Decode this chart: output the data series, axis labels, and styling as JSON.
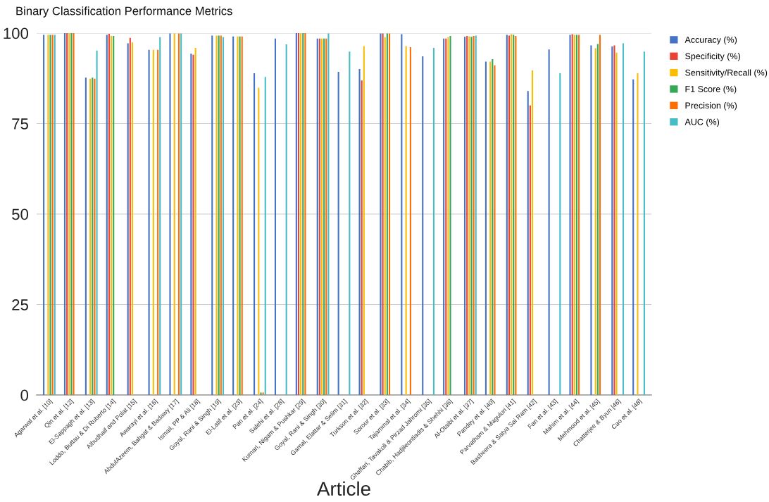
{
  "chart_data": {
    "type": "bar",
    "title": "Binary Classification Performance Metrics",
    "xlabel": "Article",
    "categories": [
      "Agarwal et al. [10]",
      "Qin et al. [12]",
      "El-Sappagh et al. [13]",
      "Loddo, Buttau & Di Ruberto [14]",
      "Alhudhaif and Polat [15]",
      "Awarayi et al. [16]",
      "AbdulAzeem, Bahgat & Badawy [17]",
      "Ismail, PP & Ali [18]",
      "Goyal, Rani & Singh [19]",
      "El-Latif et al. [23]",
      "Pan et al. [24]",
      "Salehi et al. [28]",
      "Kumari, Nigam & Pushkar [29]",
      "Goyal, Rani & Singh [30]",
      "Gamal, Elattar & Selim [31]",
      "Turkson et al. [32]",
      "Sorour et al. [33]",
      "Tajammal et al. [34]",
      "Ghaffari, Tavakoli & Pirzad Jahromi [35]",
      "Chabib, Hadjileontiadis & Shehhi [36]",
      "Al-Otaibi et al. [37]",
      "Pandey et al. [40]",
      "Parvatham & Maguluri [41]",
      "Basheera & Satya Sai Ram [42]",
      "Fan et al. [43]",
      "Mahim et al. [44]",
      "Mehmood et al. [45]",
      "Chatterjee & Byun [46]",
      "Cao et al. [48]"
    ],
    "series": [
      {
        "name": "Accuracy (%)",
        "color": "#4472c4",
        "values": [
          99.5,
          100,
          87.7,
          99.5,
          97.2,
          95.4,
          99.9,
          94.3,
          99.3,
          99.1,
          88.9,
          98.5,
          100,
          98.5,
          89.3,
          90.1,
          99.9,
          99.7,
          93.6,
          98.5,
          99.0,
          92.1,
          99.5,
          84.0,
          95.5,
          99.5,
          96.6,
          96.3,
          87.2
        ]
      },
      {
        "name": "Specificity (%)",
        "color": "#ea4335",
        "values": [
          null,
          100,
          null,
          99.8,
          98.7,
          null,
          null,
          94.0,
          null,
          null,
          null,
          null,
          100,
          98.5,
          null,
          86.9,
          99.9,
          null,
          null,
          98.5,
          99.2,
          null,
          99.3,
          80.0,
          null,
          99.7,
          null,
          96.6,
          null
        ]
      },
      {
        "name": "Sensitivity/Recall (%)",
        "color": "#fbbc04",
        "values": [
          99.5,
          100,
          87.4,
          99.2,
          97.4,
          95.4,
          99.9,
          95.9,
          99.3,
          99.1,
          84.9,
          null,
          100,
          98.5,
          null,
          96.4,
          98.9,
          96.4,
          null,
          98.9,
          99.1,
          92.1,
          99.7,
          89.7,
          null,
          99.5,
          95.8,
          94.6,
          88.9
        ]
      },
      {
        "name": "F1 Score (%)",
        "color": "#34a853",
        "values": [
          99.5,
          100,
          87.7,
          99.2,
          null,
          null,
          null,
          null,
          99.3,
          99.1,
          0.7,
          null,
          100,
          98.5,
          null,
          null,
          99.9,
          null,
          null,
          99.2,
          99.0,
          92.8,
          99.5,
          null,
          null,
          99.5,
          97.0,
          null,
          null
        ]
      },
      {
        "name": "Precision (%)",
        "color": "#ff6d01",
        "values": [
          99.5,
          100,
          87.4,
          null,
          null,
          95.4,
          99.9,
          null,
          99.3,
          99.1,
          0.7,
          null,
          100,
          98.5,
          null,
          null,
          99.9,
          96.1,
          null,
          null,
          99.2,
          91.1,
          99.2,
          null,
          null,
          99.5,
          99.5,
          null,
          null
        ]
      },
      {
        "name": "AUC (%)",
        "color": "#46bdc6",
        "values": [
          99.5,
          null,
          95.2,
          null,
          null,
          98.9,
          99.9,
          null,
          98.9,
          null,
          87.9,
          96.9,
          null,
          99.9,
          94.9,
          null,
          null,
          null,
          95.9,
          null,
          99.3,
          null,
          null,
          null,
          88.9,
          null,
          null,
          97.2,
          94.9
        ]
      }
    ],
    "ylim": [
      0,
      100
    ],
    "yticks": [
      0,
      25,
      50,
      75,
      100
    ],
    "grid": "y",
    "legend": "top right"
  }
}
